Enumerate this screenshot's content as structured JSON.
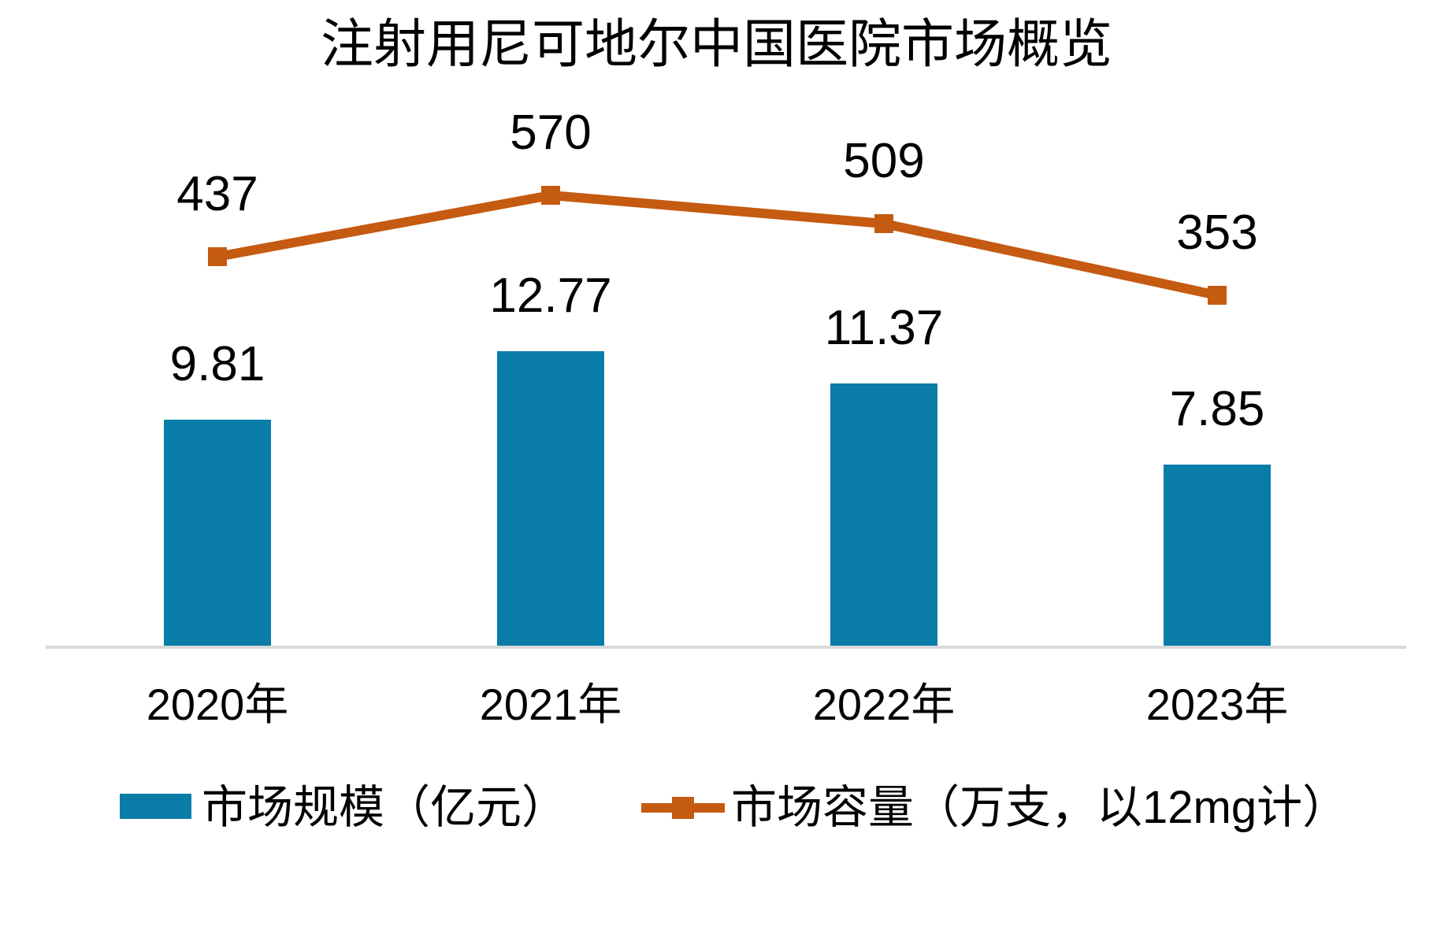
{
  "title": "注射用尼可地尔中国医院市场概览",
  "chart_data": {
    "type": "bar",
    "subtype": "combo-bar-line",
    "categories": [
      "2020年",
      "2021年",
      "2022年",
      "2023年"
    ],
    "series": [
      {
        "name": "市场规模（亿元）",
        "type": "bar",
        "values": [
          9.81,
          12.77,
          11.37,
          7.85
        ],
        "labels": [
          "9.81",
          "12.77",
          "11.37",
          "7.85"
        ],
        "color": "#0a7ca8"
      },
      {
        "name": "市场容量（万支，以12mg计）",
        "type": "line",
        "values": [
          437,
          570,
          509,
          353
        ],
        "labels": [
          "437",
          "570",
          "509",
          "353"
        ],
        "color": "#c55a11",
        "marker": "square"
      }
    ],
    "title": "注射用尼可地尔中国医院市场概览",
    "xlabel": "",
    "ylabel": "",
    "grid": false,
    "y_axis_visible": false,
    "data_labels_visible": true,
    "legend_position": "bottom",
    "axis_line_color": "#d9d9d9",
    "background": "#ffffff",
    "text_color": "#000000"
  },
  "legend": {
    "items": [
      {
        "label": "市场规模（亿元）",
        "swatch": "bar-square",
        "color": "#0a7ca8"
      },
      {
        "label": "市场容量（万支，以12mg计）",
        "swatch": "line-with-square-marker",
        "color": "#c55a11"
      }
    ]
  }
}
